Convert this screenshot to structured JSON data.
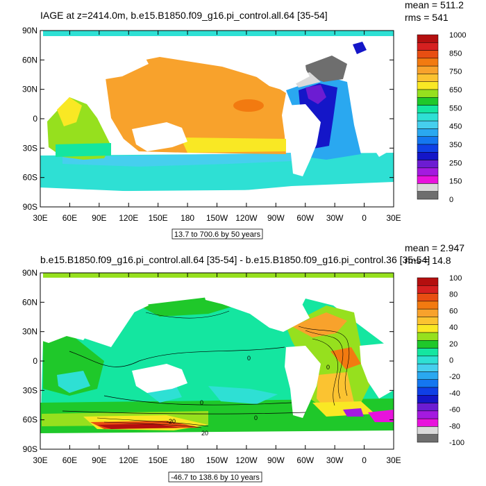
{
  "chart_data": [
    {
      "type": "heatmap",
      "title": "IAGE at z=2414.0m, b.e15.B1850.f09_g16.pi_control.all.64 [35-54]",
      "stats": {
        "mean": "mean = 511.2",
        "rms": "rms = 541"
      },
      "range_note": "13.7 to 700.6 by 50 years",
      "x_ticks": [
        "30E",
        "60E",
        "90E",
        "120E",
        "150E",
        "180",
        "150W",
        "120W",
        "90W",
        "60W",
        "30W",
        "0",
        "30E"
      ],
      "y_ticks": [
        "90N",
        "60N",
        "30N",
        "0",
        "30S",
        "60S",
        "90S"
      ],
      "legend_labels": [
        "1000",
        "850",
        "750",
        "650",
        "550",
        "450",
        "350",
        "250",
        "150",
        "0"
      ],
      "legend_colors": [
        "#b40f0f",
        "#d62020",
        "#e84e12",
        "#f27a10",
        "#f8a22c",
        "#fbc331",
        "#f9e824",
        "#96e01e",
        "#1fc82a",
        "#14e6a0",
        "#2ee0d4",
        "#46cfee",
        "#2aa8f0",
        "#1477f0",
        "#0f40e6",
        "#1416c8",
        "#6c1cd2",
        "#a41ae0",
        "#e812dc",
        "#dadada",
        "#6e6e6e"
      ]
    },
    {
      "type": "heatmap",
      "title": "b.e15.B1850.f09_g16.pi_control.all.64 [35-54] - b.e15.B1850.f09_g16.pi_control.36 [35-54]",
      "stats": {
        "mean": "mean = 2.947",
        "rms": "rms = 14.8"
      },
      "range_note": "-46.7 to 138.6 by 10 years",
      "x_ticks": [
        "30E",
        "60E",
        "90E",
        "120E",
        "150E",
        "180",
        "150W",
        "120W",
        "90W",
        "60W",
        "30W",
        "0",
        "30E"
      ],
      "y_ticks": [
        "90N",
        "60N",
        "30N",
        "0",
        "30S",
        "60S",
        "90S"
      ],
      "legend_labels": [
        "100",
        "80",
        "60",
        "40",
        "20",
        "0",
        "-20",
        "-40",
        "-60",
        "-80",
        "-100"
      ],
      "legend_colors": [
        "#b40f0f",
        "#d62020",
        "#e84e12",
        "#f27a10",
        "#f8a22c",
        "#fbc331",
        "#f9e824",
        "#96e01e",
        "#1fc82a",
        "#14e6a0",
        "#2ee0d4",
        "#46cfee",
        "#2aa8f0",
        "#1477f0",
        "#0f40e6",
        "#1416c8",
        "#6c1cd2",
        "#a41ae0",
        "#e812dc",
        "#dadada",
        "#6e6e6e"
      ],
      "contour_labels": [
        "0",
        "0",
        "0",
        "0",
        "-20",
        "20"
      ]
    }
  ]
}
